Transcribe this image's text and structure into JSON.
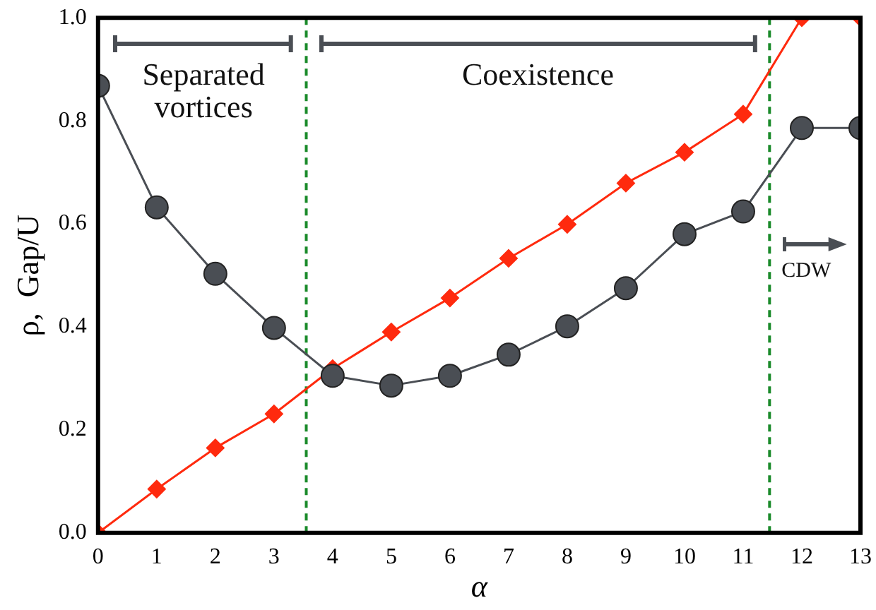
{
  "chart_data": {
    "type": "line",
    "xlabel": "α",
    "ylabel": "ρ,  Gap/U",
    "xlim": [
      0,
      13
    ],
    "xticks": [
      0,
      1,
      2,
      3,
      4,
      5,
      6,
      7,
      8,
      9,
      10,
      11,
      12,
      13
    ],
    "ylim": [
      0,
      1
    ],
    "yticks": [
      {
        "value": 0,
        "label": "0.0"
      },
      {
        "value": 0.2,
        "label": "0.2"
      },
      {
        "value": 0.4,
        "label": "0.4"
      },
      {
        "value": 0.6,
        "label": "0.6"
      },
      {
        "value": 0.8,
        "label": "0.8"
      },
      {
        "value": 1,
        "label": "1.0"
      }
    ],
    "grid": false,
    "legend": false,
    "x": [
      0,
      1,
      2,
      3,
      4,
      5,
      6,
      7,
      8,
      9,
      10,
      11,
      12,
      13
    ],
    "series": [
      {
        "color": "#4a4e54",
        "marker": "circle",
        "values": [
          0.868,
          0.632,
          0.503,
          0.398,
          0.305,
          0.286,
          0.305,
          0.346,
          0.401,
          0.475,
          0.58,
          0.624,
          0.786,
          0.786
        ]
      },
      {
        "color": "#ff2a0e",
        "marker": "diamond",
        "values": [
          0,
          0.085,
          0.165,
          0.231,
          0.319,
          0.39,
          0.456,
          0.533,
          0.599,
          0.679,
          0.739,
          0.813,
          1,
          1
        ]
      }
    ],
    "ref_lines": [
      {
        "axis": "x",
        "value": 3.55,
        "color": "#1a8a2a",
        "line_style": "dashed"
      },
      {
        "axis": "x",
        "value": 11.45,
        "color": "#1a8a2a",
        "line_style": "dashed"
      }
    ],
    "annotations": [
      "Separated vortices",
      "Coexistence",
      "CDW"
    ]
  }
}
